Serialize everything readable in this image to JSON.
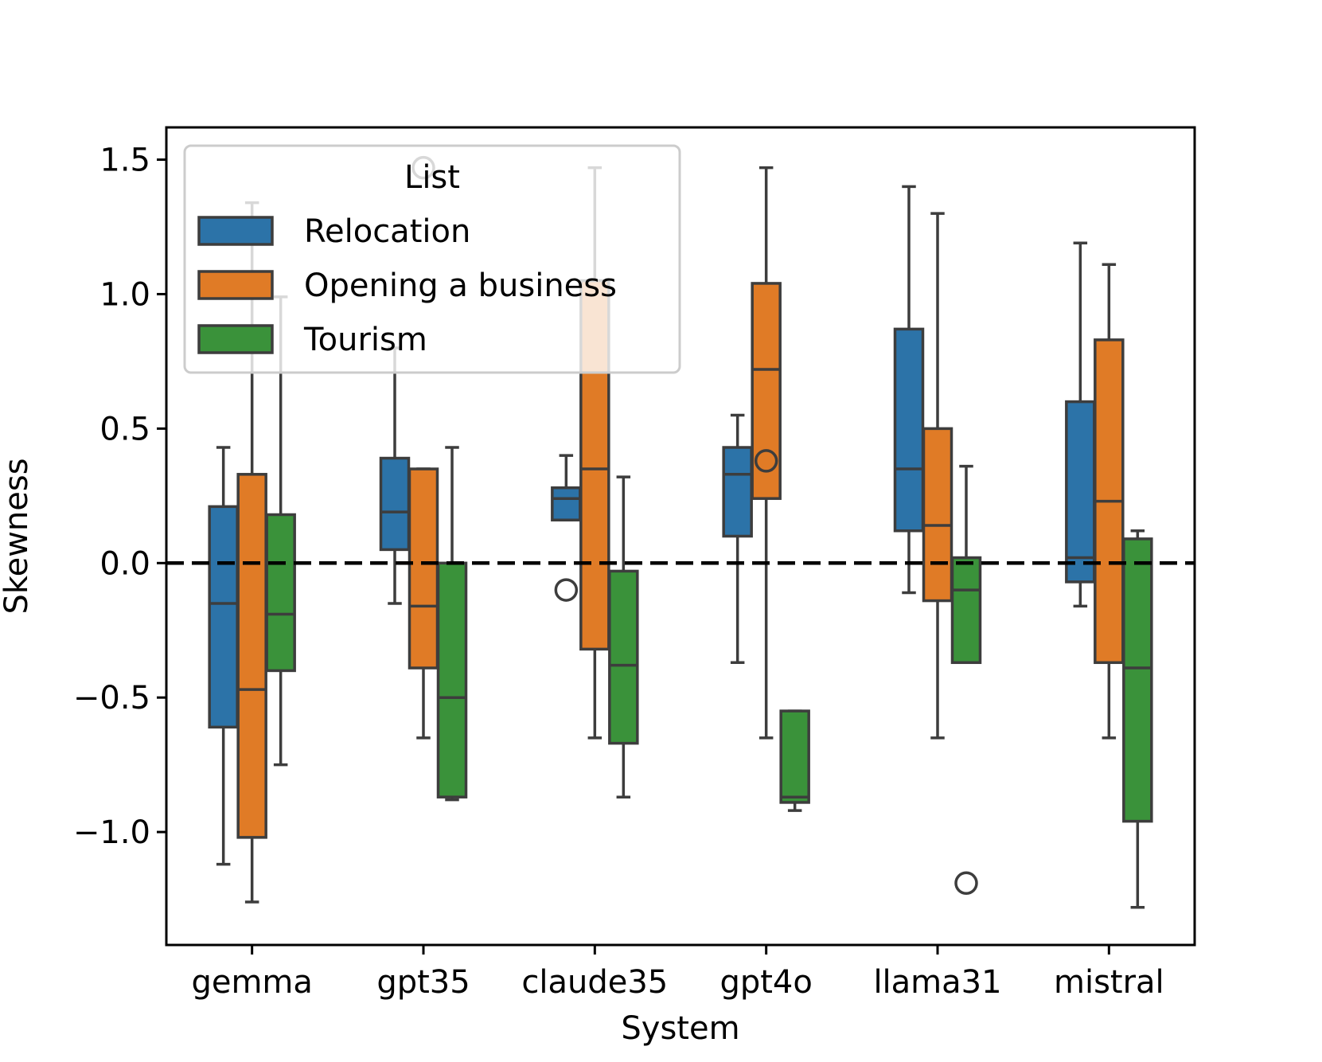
{
  "chart_data": {
    "type": "box",
    "xlabel": "System",
    "ylabel": "Skewness",
    "ylim": [
      -1.42,
      1.62
    ],
    "yticks": [
      1.5,
      1.0,
      0.5,
      0.0,
      -0.5,
      -1.0
    ],
    "ytick_labels": [
      "1.5",
      "1.0",
      "0.5",
      "0.0",
      "−0.5",
      "−1.0"
    ],
    "reference_line": {
      "y": 0.0,
      "style": "dashed",
      "color": "#000000"
    },
    "categories": [
      "gemma",
      "gpt35",
      "claude35",
      "gpt4o",
      "llama31",
      "mistral"
    ],
    "legend": {
      "title": "List",
      "placement": "upper-left"
    },
    "series": [
      {
        "name": "Relocation",
        "color": "#2c73a8",
        "boxes": [
          {
            "whisker_low": -1.12,
            "q1": -0.61,
            "median": -0.15,
            "q3": 0.21,
            "whisker_high": 0.43,
            "outliers": []
          },
          {
            "whisker_low": -0.15,
            "q1": 0.05,
            "median": 0.19,
            "q3": 0.39,
            "whisker_high": 0.8,
            "outliers": []
          },
          {
            "whisker_low": 0.16,
            "q1": 0.16,
            "median": 0.24,
            "q3": 0.28,
            "whisker_high": 0.4,
            "outliers": [
              -0.1
            ]
          },
          {
            "whisker_low": -0.37,
            "q1": 0.1,
            "median": 0.33,
            "q3": 0.43,
            "whisker_high": 0.55,
            "outliers": []
          },
          {
            "whisker_low": -0.11,
            "q1": 0.12,
            "median": 0.35,
            "q3": 0.87,
            "whisker_high": 1.4,
            "outliers": []
          },
          {
            "whisker_low": -0.16,
            "q1": -0.07,
            "median": 0.02,
            "q3": 0.6,
            "whisker_high": 1.19,
            "outliers": []
          }
        ]
      },
      {
        "name": "Opening a business",
        "color": "#e07b26",
        "boxes": [
          {
            "whisker_low": -1.26,
            "q1": -1.02,
            "median": -0.47,
            "q3": 0.33,
            "whisker_high": 1.34,
            "outliers": []
          },
          {
            "whisker_low": -0.65,
            "q1": -0.39,
            "median": -0.16,
            "q3": 0.35,
            "whisker_high": 0.35,
            "outliers": [
              1.47
            ]
          },
          {
            "whisker_low": -0.65,
            "q1": -0.32,
            "median": 0.35,
            "q3": 1.05,
            "whisker_high": 1.47,
            "outliers": []
          },
          {
            "whisker_low": -0.65,
            "q1": 0.24,
            "median": 0.72,
            "q3": 1.04,
            "whisker_high": 1.47,
            "outliers": [
              0.38
            ]
          },
          {
            "whisker_low": -0.65,
            "q1": -0.14,
            "median": 0.14,
            "q3": 0.5,
            "whisker_high": 1.3,
            "outliers": []
          },
          {
            "whisker_low": -0.65,
            "q1": -0.37,
            "median": 0.23,
            "q3": 0.83,
            "whisker_high": 1.11,
            "outliers": []
          }
        ]
      },
      {
        "name": "Tourism",
        "color": "#3a923a",
        "boxes": [
          {
            "whisker_low": -0.75,
            "q1": -0.4,
            "median": -0.19,
            "q3": 0.18,
            "whisker_high": 0.99,
            "outliers": []
          },
          {
            "whisker_low": -0.88,
            "q1": -0.87,
            "median": -0.5,
            "q3": 0.0,
            "whisker_high": 0.43,
            "outliers": []
          },
          {
            "whisker_low": -0.87,
            "q1": -0.67,
            "median": -0.38,
            "q3": -0.03,
            "whisker_high": 0.32,
            "outliers": []
          },
          {
            "whisker_low": -0.92,
            "q1": -0.89,
            "median": -0.87,
            "q3": -0.55,
            "whisker_high": -0.55,
            "outliers": []
          },
          {
            "whisker_low": -0.37,
            "q1": -0.37,
            "median": -0.1,
            "q3": 0.02,
            "whisker_high": 0.36,
            "outliers": [
              -1.19
            ]
          },
          {
            "whisker_low": -1.28,
            "q1": -0.96,
            "median": -0.39,
            "q3": 0.09,
            "whisker_high": 0.12,
            "outliers": []
          }
        ]
      }
    ]
  }
}
